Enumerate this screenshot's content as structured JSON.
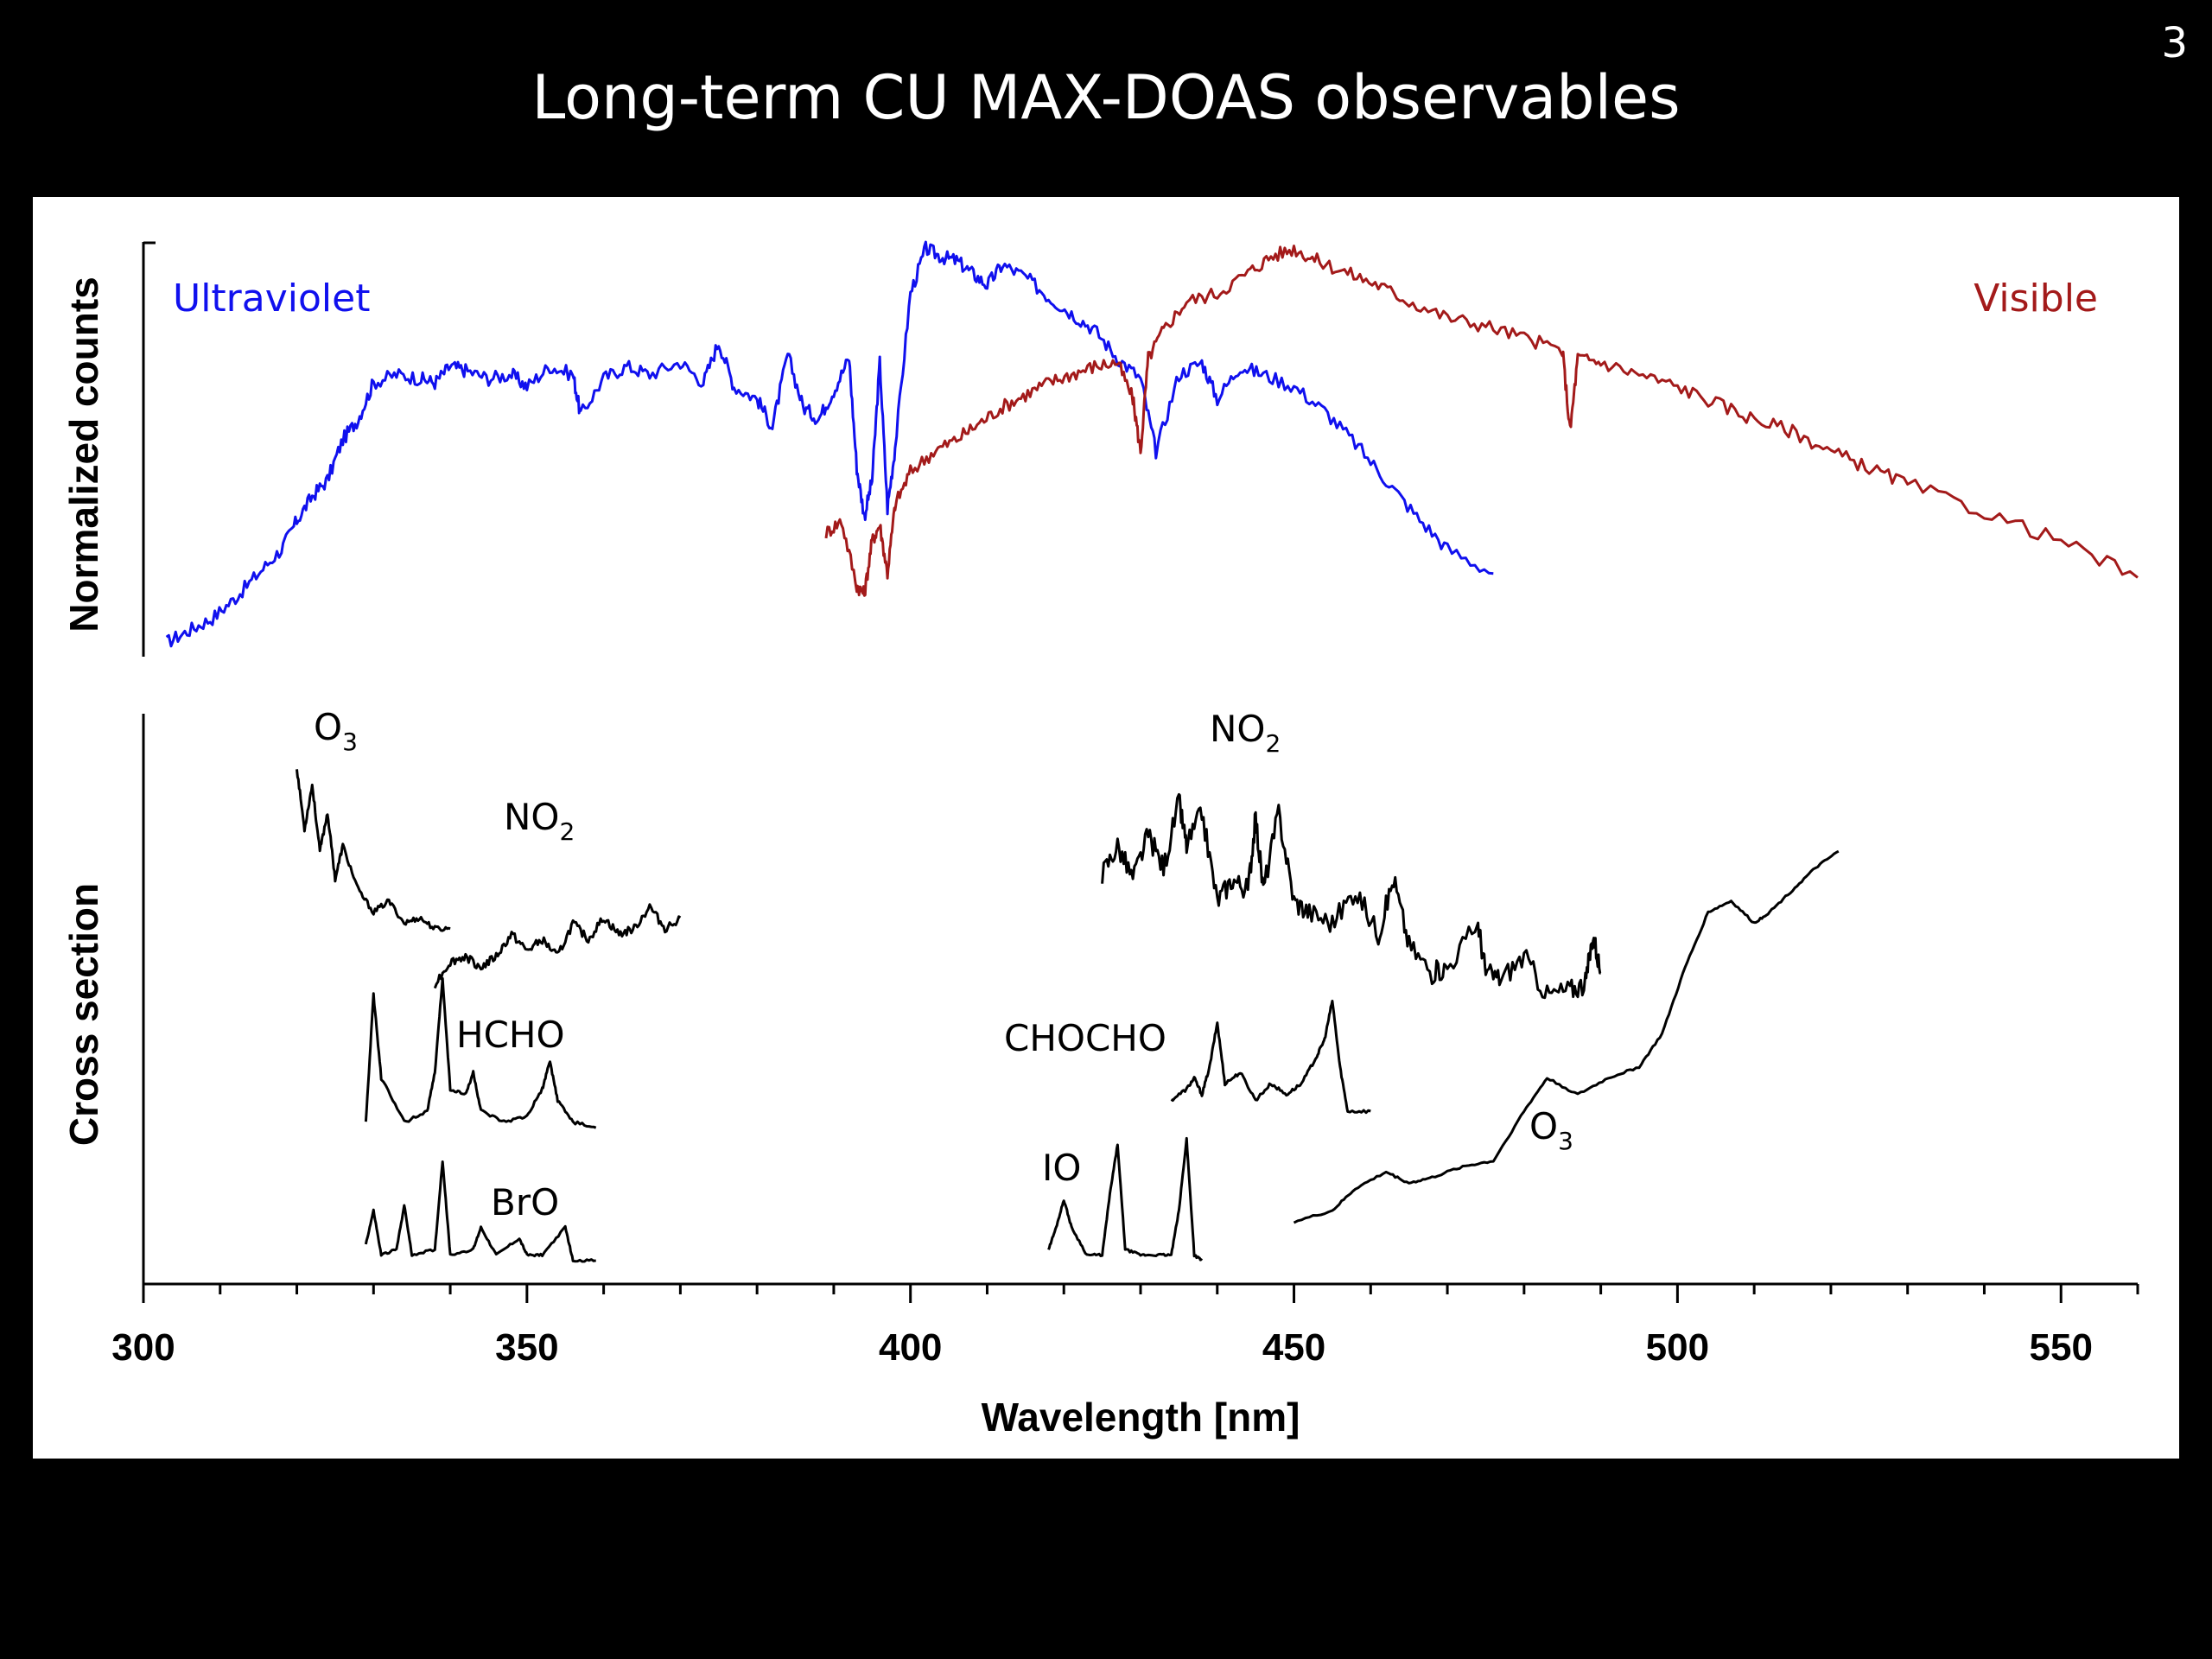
{
  "slide": {
    "number": "3",
    "title": "Long-term CU MAX-DOAS observables"
  },
  "colors": {
    "background": "#000000",
    "panel": "#ffffff",
    "ultraviolet": "#1010ee",
    "visible": "#a31a1a",
    "cross_section": "#000000"
  },
  "chart_data": [
    {
      "type": "line",
      "title": "",
      "xlabel": "",
      "ylabel": "Normalized counts",
      "xlim": [
        300,
        560
      ],
      "ylim": [
        0,
        1
      ],
      "grid": false,
      "series": [
        {
          "name": "Ultraviolet",
          "color": "#1010ee",
          "x": [
            303,
            306,
            309,
            312,
            315,
            318,
            320,
            322,
            324,
            326,
            328,
            330,
            333,
            336,
            338,
            340,
            342,
            345,
            348,
            350,
            353,
            356,
            357,
            360,
            363,
            366,
            370,
            373,
            375,
            377,
            380,
            382,
            384,
            386,
            388,
            390,
            392,
            393,
            394,
            395,
            396,
            397,
            398,
            400,
            402,
            404,
            406,
            408,
            410,
            412,
            415,
            418,
            421,
            424,
            427,
            430,
            432,
            435,
            438,
            440,
            443,
            446,
            450,
            454,
            458,
            462,
            466,
            470,
            476
          ],
          "y": [
            0.02,
            0.05,
            0.08,
            0.13,
            0.19,
            0.25,
            0.32,
            0.38,
            0.42,
            0.52,
            0.57,
            0.66,
            0.68,
            0.67,
            0.66,
            0.7,
            0.69,
            0.67,
            0.68,
            0.65,
            0.7,
            0.68,
            0.58,
            0.67,
            0.7,
            0.68,
            0.71,
            0.66,
            0.76,
            0.65,
            0.62,
            0.55,
            0.73,
            0.6,
            0.57,
            0.64,
            0.72,
            0.45,
            0.33,
            0.42,
            0.71,
            0.35,
            0.5,
            0.88,
            0.99,
            0.97,
            0.96,
            0.93,
            0.9,
            0.95,
            0.92,
            0.87,
            0.83,
            0.79,
            0.72,
            0.67,
            0.49,
            0.68,
            0.71,
            0.62,
            0.7,
            0.68,
            0.65,
            0.59,
            0.51,
            0.42,
            0.33,
            0.25,
            0.19
          ]
        },
        {
          "name": "Visible",
          "color": "#a31a1a",
          "x": [
            389,
            391,
            393,
            394,
            395,
            396,
            397,
            398,
            400,
            403,
            406,
            409,
            412,
            415,
            418,
            421,
            424,
            427,
            429,
            430,
            431,
            433,
            436,
            440,
            444,
            447,
            450,
            453,
            457,
            461,
            465,
            470,
            475,
            480,
            485,
            486,
            487,
            490,
            495,
            500,
            505,
            510,
            515,
            520,
            525,
            530,
            540,
            550,
            560
          ],
          "y": [
            0.29,
            0.32,
            0.16,
            0.14,
            0.27,
            0.31,
            0.19,
            0.36,
            0.44,
            0.49,
            0.52,
            0.56,
            0.6,
            0.63,
            0.66,
            0.68,
            0.7,
            0.71,
            0.62,
            0.49,
            0.72,
            0.79,
            0.86,
            0.88,
            0.93,
            0.97,
            0.99,
            0.96,
            0.93,
            0.9,
            0.86,
            0.82,
            0.8,
            0.77,
            0.74,
            0.54,
            0.72,
            0.71,
            0.68,
            0.65,
            0.61,
            0.57,
            0.54,
            0.49,
            0.45,
            0.41,
            0.34,
            0.27,
            0.18
          ]
        }
      ],
      "annotations": [
        "Ultraviolet",
        "Visible"
      ]
    },
    {
      "type": "line",
      "title": "",
      "xlabel": "Wavelength [nm]",
      "ylabel": "Cross section",
      "xlim": [
        300,
        560
      ],
      "xticks": [
        300,
        350,
        400,
        450,
        500,
        550
      ],
      "grid": false,
      "series": [
        {
          "name": "O3",
          "x": [
            320,
            321,
            322,
            323,
            324,
            325,
            326,
            328,
            330,
            332,
            334,
            336,
            338,
            340
          ],
          "y": [
            0.92,
            0.81,
            0.89,
            0.77,
            0.84,
            0.72,
            0.78,
            0.7,
            0.66,
            0.68,
            0.64,
            0.65,
            0.63,
            0.63
          ]
        },
        {
          "name": "NO2",
          "x": [
            338,
            340,
            342,
            344,
            346,
            348,
            350,
            352,
            354,
            356,
            358,
            360,
            362,
            364,
            366,
            368,
            370
          ],
          "y": [
            0.53,
            0.57,
            0.58,
            0.56,
            0.58,
            0.62,
            0.59,
            0.61,
            0.58,
            0.64,
            0.61,
            0.65,
            0.62,
            0.63,
            0.67,
            0.63,
            0.65
          ]
        },
        {
          "name": "HCHO",
          "x": [
            329,
            330,
            331,
            334,
            337,
            338,
            339,
            340,
            342,
            343,
            344,
            347,
            350,
            352,
            353,
            354,
            356,
            359
          ],
          "y": [
            0.28,
            0.51,
            0.36,
            0.28,
            0.3,
            0.37,
            0.54,
            0.34,
            0.33,
            0.37,
            0.3,
            0.28,
            0.29,
            0.34,
            0.39,
            0.32,
            0.28,
            0.27
          ]
        },
        {
          "name": "BrO",
          "x": [
            329,
            330,
            331,
            333,
            334,
            335,
            338,
            339,
            340,
            343,
            344,
            346,
            349,
            350,
            352,
            355,
            356,
            359
          ],
          "y": [
            0.06,
            0.12,
            0.04,
            0.05,
            0.13,
            0.04,
            0.05,
            0.21,
            0.04,
            0.05,
            0.09,
            0.04,
            0.07,
            0.04,
            0.04,
            0.09,
            0.03,
            0.03
          ]
        },
        {
          "name": "NO2",
          "x": [
            425,
            427,
            429,
            431,
            433,
            435,
            436,
            438,
            440,
            442,
            444,
            445,
            446,
            448,
            450,
            452,
            455,
            458,
            461,
            463,
            465,
            468,
            470,
            474,
            475,
            477,
            480,
            483,
            486,
            488,
            489,
            490
          ],
          "y": [
            0.73,
            0.78,
            0.72,
            0.8,
            0.74,
            0.86,
            0.78,
            0.84,
            0.68,
            0.72,
            0.7,
            0.83,
            0.7,
            0.84,
            0.68,
            0.66,
            0.64,
            0.7,
            0.62,
            0.72,
            0.6,
            0.55,
            0.56,
            0.64,
            0.55,
            0.54,
            0.58,
            0.51,
            0.52,
            0.53,
            0.62,
            0.55
          ]
        },
        {
          "name": "CHOCHO",
          "x": [
            434,
            436,
            437,
            438,
            439,
            440,
            441,
            443,
            445,
            447,
            449,
            451,
            453,
            454,
            455,
            456,
            457,
            460
          ],
          "y": [
            0.32,
            0.34,
            0.36,
            0.33,
            0.38,
            0.46,
            0.35,
            0.37,
            0.32,
            0.35,
            0.33,
            0.35,
            0.4,
            0.43,
            0.5,
            0.38,
            0.3,
            0.3
          ]
        },
        {
          "name": "IO",
          "x": [
            418,
            419,
            420,
            421,
            423,
            425,
            426,
            427,
            428,
            430,
            432,
            434,
            435,
            436,
            437,
            438
          ],
          "y": [
            0.05,
            0.09,
            0.14,
            0.09,
            0.04,
            0.04,
            0.15,
            0.24,
            0.05,
            0.04,
            0.04,
            0.04,
            0.12,
            0.25,
            0.04,
            0.03
          ]
        },
        {
          "name": "O3",
          "x": [
            450,
            455,
            458,
            462,
            465,
            468,
            472,
            476,
            480,
            483,
            487,
            491,
            495,
            498,
            501,
            504,
            507,
            510,
            512,
            515,
            518,
            521
          ],
          "y": [
            0.1,
            0.12,
            0.16,
            0.19,
            0.17,
            0.18,
            0.2,
            0.21,
            0.3,
            0.36,
            0.33,
            0.36,
            0.38,
            0.44,
            0.56,
            0.66,
            0.68,
            0.64,
            0.66,
            0.7,
            0.74,
            0.77
          ]
        }
      ],
      "labels": {
        "o3_uv": {
          "base": "O",
          "sub": "3"
        },
        "no2_uv": {
          "base": "NO",
          "sub": "2"
        },
        "hcho": "HCHO",
        "bro": "BrO",
        "no2_vis": {
          "base": "NO",
          "sub": "2"
        },
        "chocho": "CHOCHO",
        "io": "IO",
        "o3_vis": {
          "base": "O",
          "sub": "3"
        }
      }
    }
  ]
}
